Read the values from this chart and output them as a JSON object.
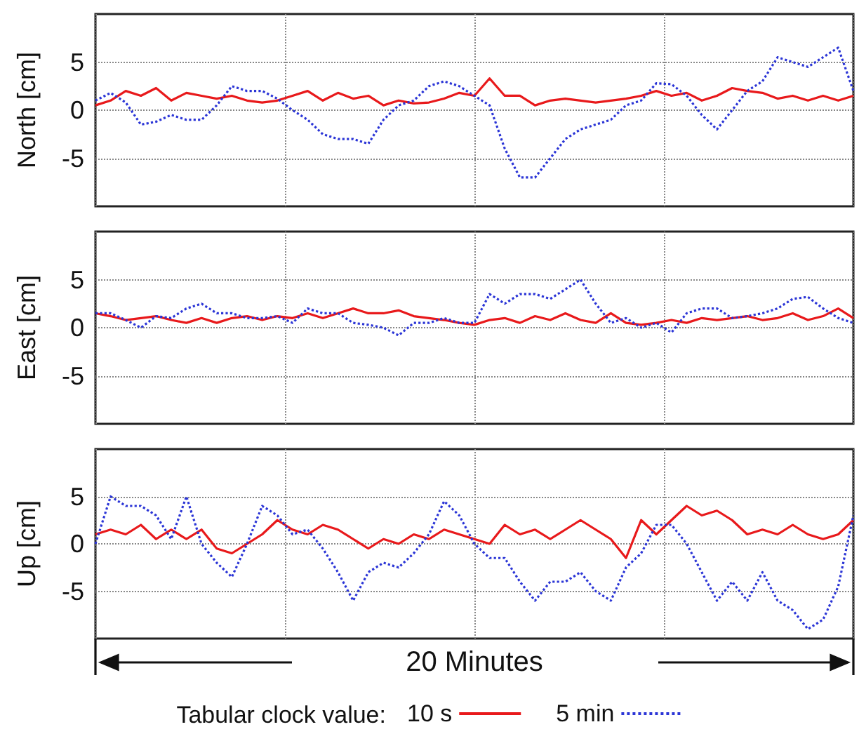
{
  "chart_data": [
    {
      "type": "line",
      "ylabel": "North [cm]",
      "categories": [
        null,
        null,
        null,
        null,
        null,
        null,
        null,
        null,
        null,
        null,
        null,
        null,
        null,
        null,
        null,
        null,
        null,
        null,
        null,
        null,
        null,
        null,
        null,
        null,
        null,
        null,
        null,
        null,
        null,
        null,
        null,
        null,
        null,
        null,
        null,
        null,
        null,
        null,
        null,
        null,
        null,
        null,
        null,
        null,
        null,
        null,
        null,
        null,
        null,
        null,
        null
      ],
      "ylim": [
        -10,
        10
      ],
      "yticks": [
        -5,
        0,
        5
      ],
      "tick_labels": "y",
      "grid": true,
      "marker": "none",
      "legend": false,
      "series": [
        {
          "color": "#e8191b",
          "line_style": "solid",
          "values": [
            0.5,
            1,
            2,
            1.5,
            2.3,
            1,
            1.8,
            1.5,
            1.2,
            1.5,
            1,
            0.8,
            1,
            1.5,
            2,
            1,
            1.8,
            1.2,
            1.5,
            0.5,
            1,
            0.7,
            0.8,
            1.2,
            1.8,
            1.5,
            3.3,
            1.5,
            1.5,
            0.5,
            1,
            1.2,
            1,
            0.8,
            1,
            1.2,
            1.5,
            2,
            1.5,
            1.8,
            1,
            1.5,
            2.3,
            2,
            1.8,
            1.2,
            1.5,
            1,
            1.5,
            1,
            1.5
          ]
        },
        {
          "color": "#2b35d6",
          "line_style": "dotted",
          "values": [
            1,
            1.8,
            0.8,
            -1.5,
            -1.2,
            -0.5,
            -1,
            -1,
            0.5,
            2.5,
            2,
            2,
            1.2,
            0,
            -1,
            -2.5,
            -3,
            -3,
            -3.5,
            -1,
            0.5,
            1,
            2.5,
            3,
            2.5,
            1.5,
            0.5,
            -4,
            -7,
            -7,
            -5,
            -3,
            -2,
            -1.5,
            -1,
            0.5,
            1,
            2.8,
            2.7,
            1.5,
            -0.5,
            -2,
            0,
            2,
            3,
            5.5,
            5,
            4.5,
            5.5,
            6.5,
            2
          ]
        }
      ]
    },
    {
      "type": "line",
      "ylabel": "East [cm]",
      "categories": [
        null,
        null,
        null,
        null,
        null,
        null,
        null,
        null,
        null,
        null,
        null,
        null,
        null,
        null,
        null,
        null,
        null,
        null,
        null,
        null,
        null,
        null,
        null,
        null,
        null,
        null,
        null,
        null,
        null,
        null,
        null,
        null,
        null,
        null,
        null,
        null,
        null,
        null,
        null,
        null,
        null,
        null,
        null,
        null,
        null,
        null,
        null,
        null,
        null,
        null,
        null
      ],
      "ylim": [
        -10,
        10
      ],
      "yticks": [
        -5,
        0,
        5
      ],
      "tick_labels": "y",
      "grid": true,
      "marker": "none",
      "legend": false,
      "series": [
        {
          "color": "#e8191b",
          "line_style": "solid",
          "values": [
            1.5,
            1.2,
            0.8,
            1,
            1.2,
            0.8,
            0.5,
            1,
            0.5,
            1,
            1.2,
            0.8,
            1.2,
            1,
            1.5,
            1,
            1.5,
            2,
            1.5,
            1.5,
            1.8,
            1.2,
            1,
            0.8,
            0.5,
            0.3,
            0.8,
            1,
            0.5,
            1.2,
            0.8,
            1.5,
            0.8,
            0.5,
            1.5,
            0.5,
            0.3,
            0.5,
            0.8,
            0.5,
            1,
            0.8,
            1,
            1.2,
            0.8,
            1,
            1.5,
            0.8,
            1.2,
            2,
            1
          ]
        },
        {
          "color": "#2b35d6",
          "line_style": "dotted",
          "values": [
            1.5,
            1.5,
            0.8,
            0,
            1.2,
            1,
            2,
            2.5,
            1.5,
            1.5,
            1,
            1,
            1.2,
            0.5,
            2,
            1.5,
            1.5,
            0.5,
            0.3,
            0,
            -0.8,
            0.5,
            0.5,
            1,
            0.5,
            0.5,
            3.5,
            2.5,
            3.5,
            3.5,
            3,
            4,
            5,
            2.5,
            0.5,
            1,
            0,
            0.5,
            -0.5,
            1.5,
            2,
            2,
            1,
            1.2,
            1.5,
            2,
            3,
            3.2,
            2,
            1,
            0.5
          ]
        }
      ]
    },
    {
      "type": "line",
      "ylabel": "Up [cm]",
      "annotations": [
        "20 Minutes"
      ],
      "legend_title": "Tabular clock value:",
      "categories": [
        null,
        null,
        null,
        null,
        null,
        null,
        null,
        null,
        null,
        null,
        null,
        null,
        null,
        null,
        null,
        null,
        null,
        null,
        null,
        null,
        null,
        null,
        null,
        null,
        null,
        null,
        null,
        null,
        null,
        null,
        null,
        null,
        null,
        null,
        null,
        null,
        null,
        null,
        null,
        null,
        null,
        null,
        null,
        null,
        null,
        null,
        null,
        null,
        null,
        null,
        null
      ],
      "ylim": [
        -10,
        10
      ],
      "yticks": [
        -5,
        0,
        5
      ],
      "tick_labels": "y",
      "grid": true,
      "marker": "none",
      "legend": "bottom",
      "series": [
        {
          "name": "10 s",
          "color": "#e8191b",
          "line_style": "solid",
          "values": [
            1,
            1.5,
            1,
            2,
            0.5,
            1.5,
            0.5,
            1.5,
            -0.5,
            -1,
            0,
            1,
            2.5,
            1.5,
            1,
            2,
            1.5,
            0.5,
            -0.5,
            0.5,
            0,
            1,
            0.5,
            1.5,
            1,
            0.5,
            0,
            2,
            1,
            1.5,
            0.5,
            1.5,
            2.5,
            1.5,
            0.5,
            -1.5,
            2.5,
            1,
            2.5,
            4,
            3,
            3.5,
            2.5,
            1,
            1.5,
            1,
            2,
            1,
            0.5,
            1,
            2.5
          ]
        },
        {
          "name": "5 min",
          "color": "#2b35d6",
          "line_style": "dotted",
          "values": [
            0,
            5,
            4,
            4,
            3,
            0.5,
            5,
            0,
            -2,
            -3.5,
            0,
            4,
            3,
            1,
            1.5,
            -0.5,
            -3,
            -6,
            -3,
            -2,
            -2.5,
            -1,
            1,
            4.5,
            3,
            0,
            -1.5,
            -1.5,
            -4,
            -6,
            -4,
            -4,
            -3,
            -5,
            -6,
            -2.5,
            -1,
            2,
            2,
            0,
            -3,
            -6,
            -4,
            -6,
            -3,
            -6,
            -7,
            -9,
            -8,
            -4.5,
            3
          ]
        }
      ]
    }
  ]
}
